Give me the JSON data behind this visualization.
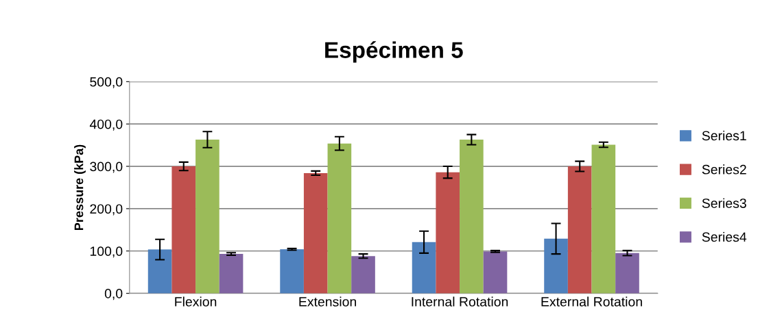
{
  "chart_data": {
    "type": "bar",
    "title": "Espécimen 5",
    "ylabel": "Pressure (kPa)",
    "categories": [
      "Flexion",
      "Extension",
      "Internal Rotation",
      "External Rotation"
    ],
    "series": [
      {
        "name": "Series1",
        "color": "#4f81bd",
        "values": [
          103.5,
          104,
          121,
          129
        ],
        "errors": [
          24,
          2,
          26,
          36
        ]
      },
      {
        "name": "Series2",
        "color": "#c0504d",
        "values": [
          300,
          284,
          286,
          300
        ],
        "errors": [
          10,
          5,
          14,
          12
        ]
      },
      {
        "name": "Series3",
        "color": "#9bbb59",
        "values": [
          363,
          354,
          363,
          351
        ],
        "errors": [
          19,
          16,
          12,
          6
        ]
      },
      {
        "name": "Series4",
        "color": "#8064a2",
        "values": [
          93,
          88,
          99,
          95
        ],
        "errors": [
          3,
          5,
          2,
          6
        ]
      }
    ],
    "ylim": [
      0,
      500
    ],
    "yticks": [
      {
        "value": 0,
        "label": "0,0"
      },
      {
        "value": 100,
        "label": "100,0"
      },
      {
        "value": 200,
        "label": "200,0"
      },
      {
        "value": 300,
        "label": "300,0"
      },
      {
        "value": 400,
        "label": "400,0"
      },
      {
        "value": 500,
        "label": "500,0"
      }
    ],
    "grid": "y",
    "legend": "right"
  }
}
